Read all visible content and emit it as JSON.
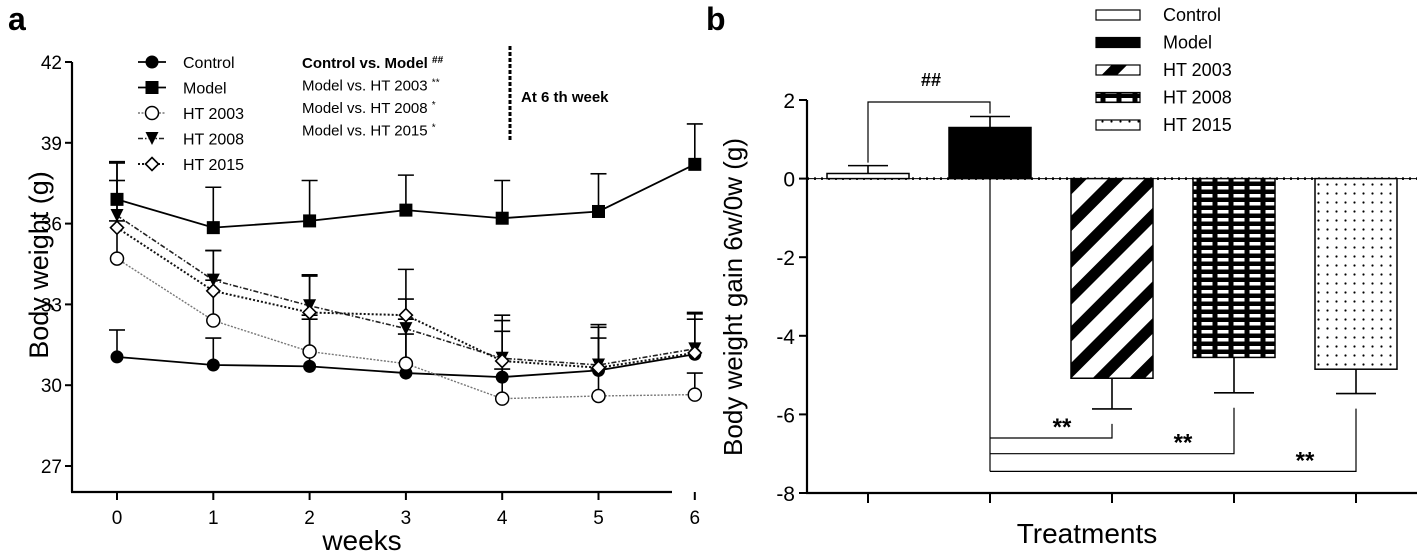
{
  "chart_data": [
    {
      "panel_label": "a",
      "type": "line",
      "title": "",
      "xlabel": "weeks",
      "ylabel": "Body weight (g)",
      "x": [
        0,
        1,
        2,
        3,
        4,
        5,
        6
      ],
      "x_tick_labels": [
        "0",
        "1",
        "2",
        "3",
        "4",
        "5",
        "6"
      ],
      "xlim": [
        -0.5,
        7.0
      ],
      "ylim": [
        25.8,
        42
      ],
      "y_ticks": [
        27,
        30,
        33,
        36,
        39,
        42
      ],
      "y_tick_labels": [
        "27",
        "30",
        "33",
        "36",
        "39",
        "42"
      ],
      "grid": false,
      "legend_position": "top-left",
      "series": [
        {
          "name": "Control",
          "marker": "filled-circle",
          "line": "solid",
          "values": [
            31.05,
            30.75,
            30.7,
            30.45,
            30.3,
            30.55,
            31.15
          ],
          "errors": [
            1.0,
            1.0,
            1.9,
            2.0,
            2.1,
            1.7,
            1.3
          ]
        },
        {
          "name": "Model",
          "marker": "filled-square",
          "line": "solid",
          "values": [
            36.9,
            35.85,
            36.1,
            36.5,
            36.2,
            36.45,
            38.2
          ],
          "errors": [
            1.4,
            1.5,
            1.5,
            1.3,
            1.4,
            1.4,
            1.5
          ]
        },
        {
          "name": "HT 2003",
          "marker": "open-circle",
          "line": "dotted-gray",
          "values": [
            34.7,
            32.4,
            31.25,
            30.8,
            29.5,
            29.6,
            29.65
          ],
          "errors": [
            1.4,
            1.5,
            1.2,
            1.1,
            1.1,
            1.0,
            0.8
          ]
        },
        {
          "name": "HT 2008",
          "marker": "filled-triangle-down",
          "line": "dash-dot",
          "values": [
            36.3,
            33.9,
            32.95,
            32.1,
            31.0,
            30.75,
            31.35
          ],
          "errors": [
            1.3,
            1.1,
            1.1,
            1.1,
            1.0,
            1.0,
            1.3
          ]
        },
        {
          "name": "HT 2015",
          "marker": "open-diamond",
          "line": "dotted",
          "values": [
            35.85,
            33.5,
            32.7,
            32.6,
            30.9,
            30.65,
            31.2
          ],
          "errors": [
            2.4,
            1.5,
            1.4,
            1.7,
            1.7,
            1.5,
            1.5
          ]
        }
      ],
      "annotations": {
        "comparisons": [
          {
            "text": "Control vs. Model",
            "sig": "##",
            "bold": true
          },
          {
            "text": "Model vs. HT 2003",
            "sig": "**",
            "bold": false
          },
          {
            "text": "Model vs. HT 2008",
            "sig": "*",
            "bold": false
          },
          {
            "text": "Model vs. HT 2015",
            "sig": "*",
            "bold": false
          }
        ],
        "note": "At 6 th week"
      }
    },
    {
      "panel_label": "b",
      "type": "bar",
      "title": "",
      "xlabel": "Treatments",
      "ylabel": "Body weight gain 6w/0w (g)",
      "categories": [
        "Control",
        "Model",
        "HT 2003",
        "HT 2008",
        "HT 2015"
      ],
      "legend_labels": [
        "Control",
        "Model",
        "HT  2003",
        "HT 2008",
        "HT 2015"
      ],
      "values": [
        0.13,
        1.3,
        -5.08,
        -4.55,
        -4.85
      ],
      "errors": [
        0.2,
        0.28,
        0.78,
        0.9,
        0.62
      ],
      "fills": [
        "white",
        "black",
        "diagonal-stripes",
        "brick",
        "dots"
      ],
      "ylim": [
        -8,
        2
      ],
      "y_ticks": [
        -8,
        -6,
        -4,
        -2,
        0,
        2
      ],
      "y_tick_labels": [
        "-8",
        "-6",
        "-4",
        "-2",
        "0",
        "2"
      ],
      "grid": false,
      "legend_position": "top-right",
      "significance": [
        {
          "from": "Control",
          "to": "Model",
          "label": "##"
        },
        {
          "from": "Model",
          "to": "HT 2003",
          "label": "**"
        },
        {
          "from": "Model",
          "to": "HT 2008",
          "label": "**"
        },
        {
          "from": "Model",
          "to": "HT 2015",
          "label": "**"
        }
      ]
    }
  ]
}
